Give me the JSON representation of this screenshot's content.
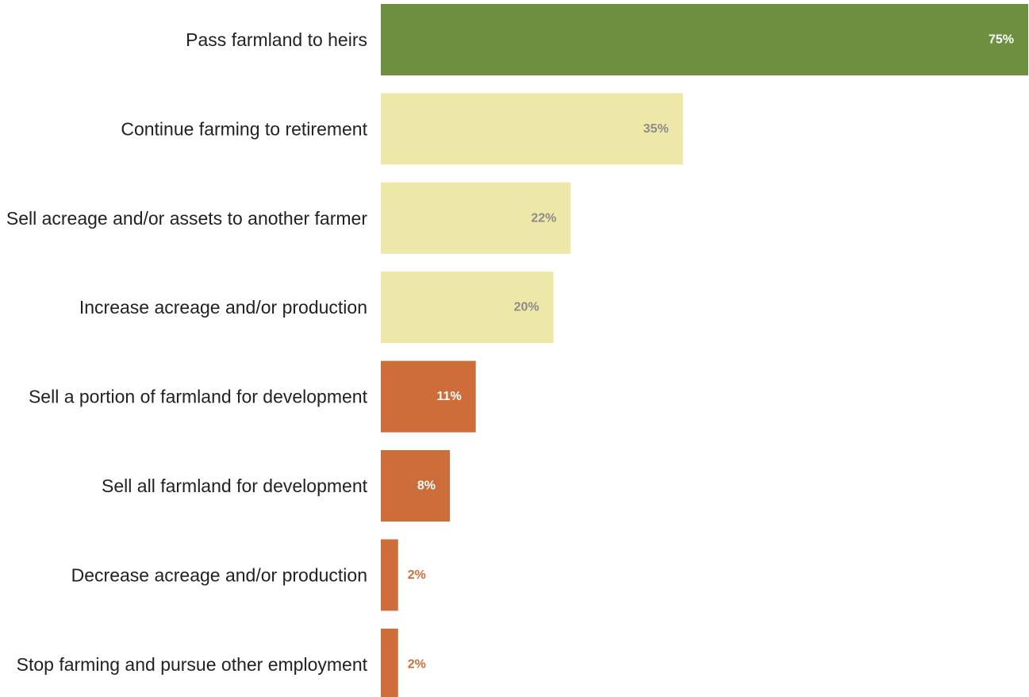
{
  "chart_data": {
    "type": "bar",
    "orientation": "horizontal",
    "categories": [
      "Pass farmland to heirs",
      "Continue farming to retirement",
      "Sell acreage and/or assets to another farmer",
      "Increase acreage and/or production",
      "Sell a portion of farmland for development",
      "Sell all farmland for development",
      "Decrease acreage and/or production",
      "Stop farming and pursue other employment"
    ],
    "values": [
      75,
      35,
      22,
      20,
      11,
      8,
      2,
      2
    ],
    "value_labels": [
      "75%",
      "35%",
      "22%",
      "20%",
      "11%",
      "8%",
      "2%",
      "2%"
    ],
    "unit": "%",
    "xlim": [
      0,
      75
    ],
    "grid": false,
    "legend": "none",
    "bar_colors": [
      "#6f8f40",
      "#eee8a8",
      "#eee8a8",
      "#eee8a8",
      "#cc6d3a",
      "#cc6d3a",
      "#cc6d3a",
      "#cc6d3a"
    ],
    "value_label_colors": [
      "#ffffff",
      "#8c8c8c",
      "#8c8c8c",
      "#8c8c8c",
      "#ffffff",
      "#ffffff",
      "#cc6d3a",
      "#cc6d3a"
    ]
  }
}
